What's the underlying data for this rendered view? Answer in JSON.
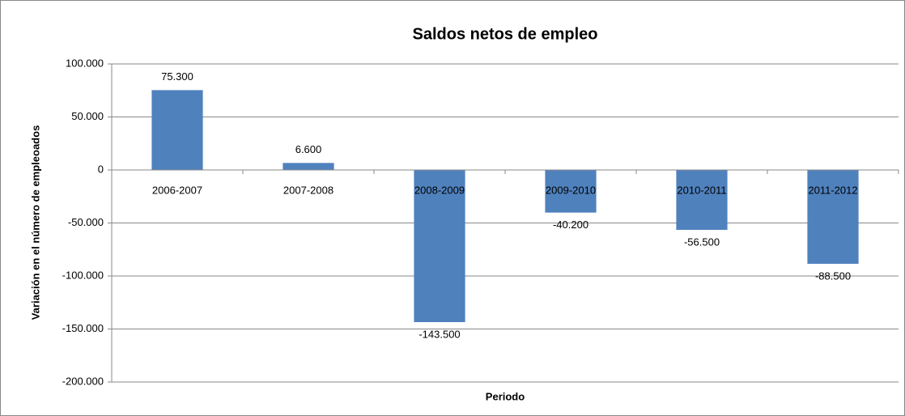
{
  "chart_data": {
    "type": "bar",
    "title": "Saldos netos de empleo",
    "x_label": "Periodo",
    "y_label": "Variación en el número de empleoados",
    "categories": [
      "2006-2007",
      "2007-2008",
      "2008-2009",
      "2009-2010",
      "2010-2011",
      "2011-2012"
    ],
    "values": [
      75300,
      6600,
      -143500,
      -40200,
      -56500,
      -88500
    ],
    "value_labels": [
      "75.300",
      "6.600",
      "-143.500",
      "-40.200",
      "-56.500",
      "-88.500"
    ],
    "color": "#4f81bd",
    "ylim": [
      -200000,
      100000
    ],
    "yticks": [
      {
        "value": -200000,
        "label": "-200.000"
      },
      {
        "value": -150000,
        "label": "-150.000"
      },
      {
        "value": -100000,
        "label": "-100.000"
      },
      {
        "value": -50000,
        "label": "-50.000"
      },
      0,
      {
        "value": 50000,
        "label": "50.000"
      },
      {
        "value": 100000,
        "label": "100.000"
      }
    ],
    "grid": true
  }
}
